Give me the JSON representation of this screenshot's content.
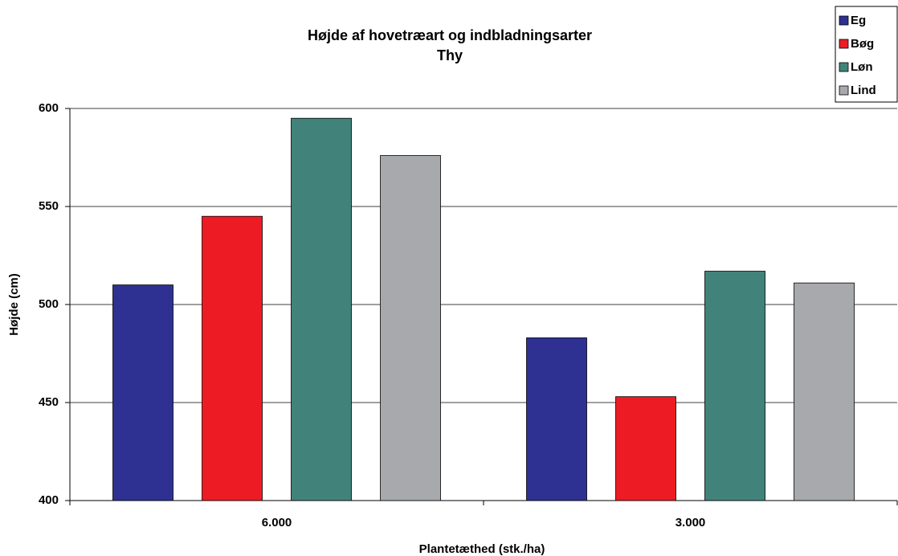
{
  "chart_data": {
    "type": "bar",
    "title": "Højde af hovetræart og indbladningsarter",
    "subtitle": "Thy",
    "x_label": "Plantetæthed (stk./ha)",
    "y_label": "Højde (cm)",
    "categories": [
      "6.000",
      "3.000"
    ],
    "series": [
      {
        "name": "Eg",
        "color": "#2e3192",
        "values": [
          510,
          483
        ]
      },
      {
        "name": "Bøg",
        "color": "#ed1c24",
        "values": [
          545,
          453
        ]
      },
      {
        "name": "Løn",
        "color": "#41837a",
        "values": [
          595,
          517
        ]
      },
      {
        "name": "Lind",
        "color": "#a7a9ac",
        "values": [
          576,
          511
        ]
      }
    ],
    "ylim": [
      400,
      600
    ],
    "yticks": [
      400,
      450,
      500,
      550,
      600
    ],
    "grid": true,
    "legend": "top-right"
  }
}
